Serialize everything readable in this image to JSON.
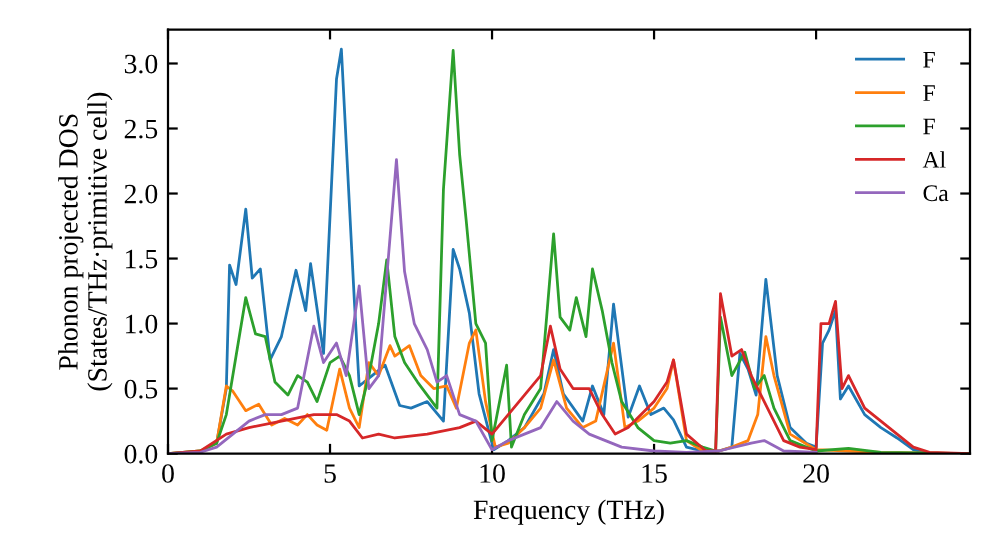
{
  "chart_data": {
    "type": "line",
    "xlabel": "Frequency (THz)",
    "ylabel": "Phonon projected DOS\n(States/THz·primitive cell)",
    "xlim": [
      0,
      24.75
    ],
    "ylim": [
      0,
      3.26
    ],
    "xticks": [
      0,
      5,
      10,
      15,
      20
    ],
    "yticks": [
      {
        "value": 0,
        "label": "0.0"
      },
      {
        "value": 0.5,
        "label": "0.5"
      },
      {
        "value": 1,
        "label": "1.0"
      },
      {
        "value": 1.5,
        "label": "1.5"
      },
      {
        "value": 2,
        "label": "2.0"
      },
      {
        "value": 2.5,
        "label": "2.5"
      },
      {
        "value": 3,
        "label": "3.0"
      }
    ],
    "grid": false,
    "legend": "top right",
    "marker": "none",
    "line_style": "solid",
    "series": [
      {
        "name": "F",
        "color": "#1f77b4",
        "x": [
          1.5,
          1.8,
          1.9,
          2.1,
          2.4,
          2.6,
          2.85,
          3.15,
          3.5,
          3.95,
          4.25,
          4.4,
          4.8,
          5.2,
          5.35,
          5.75,
          5.9,
          6.3,
          6.7,
          7.15,
          7.5,
          8.0,
          8.5,
          8.8,
          9.0,
          9.3,
          9.6,
          10.05,
          10.5,
          11.0,
          11.6,
          11.9,
          12.2,
          12.8,
          13.1,
          13.45,
          13.75,
          14.2,
          14.55,
          14.9,
          15.3,
          15.6,
          16.0,
          16.5,
          17.0,
          17.4,
          17.65,
          17.9,
          18.15,
          18.45,
          18.8,
          19.2,
          19.7,
          20.0,
          20.2,
          20.4,
          20.6,
          20.75,
          21.0,
          21.5,
          22.0,
          22.5,
          23.0,
          23.5,
          24.75
        ],
        "values": [
          0.08,
          0.5,
          1.45,
          1.3,
          1.88,
          1.35,
          1.42,
          0.72,
          0.9,
          1.41,
          1.1,
          1.46,
          0.77,
          2.88,
          3.11,
          1.18,
          0.52,
          0.6,
          0.68,
          0.37,
          0.35,
          0.4,
          0.25,
          1.57,
          1.42,
          1.08,
          0.46,
          0.03,
          0.1,
          0.2,
          0.46,
          0.8,
          0.46,
          0.25,
          0.52,
          0.3,
          1.15,
          0.28,
          0.52,
          0.3,
          0.35,
          0.26,
          0.05,
          0.02,
          0.02,
          0.05,
          0.77,
          0.65,
          0.45,
          1.34,
          0.6,
          0.2,
          0.08,
          0.05,
          0.85,
          0.95,
          1.1,
          0.42,
          0.52,
          0.3,
          0.2,
          0.12,
          0.03,
          0,
          0
        ]
      },
      {
        "name": "F",
        "color": "#ff7f0e",
        "x": [
          0,
          1.0,
          1.5,
          1.8,
          2.0,
          2.4,
          2.8,
          3.2,
          3.6,
          4.0,
          4.3,
          4.6,
          4.9,
          5.3,
          5.6,
          5.9,
          6.2,
          6.5,
          6.85,
          7.0,
          7.45,
          7.8,
          8.2,
          8.6,
          8.9,
          9.3,
          9.5,
          9.8,
          10.1,
          10.5,
          11.0,
          11.5,
          11.9,
          12.3,
          12.8,
          13.2,
          13.75,
          14.1,
          14.5,
          15.0,
          15.4,
          15.6,
          16.0,
          16.5,
          17.0,
          17.4,
          17.9,
          18.2,
          18.45,
          18.7,
          19.2,
          20.0,
          21.0,
          22.0,
          24.75
        ],
        "values": [
          0,
          0.02,
          0.08,
          0.52,
          0.48,
          0.33,
          0.38,
          0.22,
          0.27,
          0.22,
          0.3,
          0.22,
          0.18,
          0.65,
          0.35,
          0.2,
          0.7,
          0.6,
          0.83,
          0.75,
          0.83,
          0.6,
          0.5,
          0.52,
          0.35,
          0.85,
          0.95,
          0.4,
          0.05,
          0.08,
          0.2,
          0.35,
          0.72,
          0.35,
          0.2,
          0.25,
          0.85,
          0.2,
          0.25,
          0.35,
          0.5,
          0.72,
          0.1,
          0.02,
          0.02,
          0.05,
          0.1,
          0.3,
          0.9,
          0.6,
          0.15,
          0.03,
          0.02,
          0.01,
          0
        ]
      },
      {
        "name": "F",
        "color": "#2ca02c",
        "x": [
          0,
          1.0,
          1.5,
          1.8,
          2.1,
          2.4,
          2.7,
          3.0,
          3.3,
          3.7,
          4.0,
          4.3,
          4.6,
          5.0,
          5.3,
          5.6,
          5.9,
          6.2,
          6.5,
          6.75,
          7.0,
          7.3,
          7.7,
          8.0,
          8.3,
          8.5,
          8.8,
          9.0,
          9.2,
          9.5,
          9.8,
          10.0,
          10.45,
          10.6,
          11.0,
          11.5,
          11.9,
          12.1,
          12.4,
          12.6,
          12.9,
          13.1,
          13.4,
          13.7,
          14.0,
          14.5,
          15.0,
          15.5,
          16.0,
          16.5,
          16.9,
          17.05,
          17.4,
          17.8,
          18.1,
          18.4,
          18.7,
          19.2,
          20.0,
          21.0,
          22.0,
          24.75
        ],
        "values": [
          0,
          0.02,
          0.08,
          0.3,
          0.75,
          1.2,
          0.92,
          0.9,
          0.55,
          0.45,
          0.6,
          0.55,
          0.4,
          0.7,
          0.75,
          0.6,
          0.3,
          0.6,
          1.0,
          1.49,
          0.9,
          0.7,
          0.55,
          0.45,
          0.35,
          2.03,
          3.1,
          2.3,
          1.8,
          1.0,
          0.85,
          0.1,
          0.68,
          0.05,
          0.3,
          0.5,
          1.69,
          1.05,
          0.95,
          1.2,
          0.9,
          1.42,
          1.1,
          0.7,
          0.4,
          0.2,
          0.1,
          0.08,
          0.1,
          0.05,
          0.02,
          1.05,
          0.6,
          0.78,
          0.5,
          0.6,
          0.35,
          0.1,
          0.02,
          0.04,
          0.01,
          0
        ]
      },
      {
        "name": "Al",
        "color": "#d62728",
        "x": [
          0,
          1.0,
          1.8,
          2.5,
          3.5,
          4.5,
          5.2,
          5.6,
          6.0,
          6.5,
          7.0,
          8.0,
          9.0,
          9.5,
          10.0,
          10.5,
          11.0,
          11.5,
          11.8,
          12.1,
          12.5,
          13.0,
          13.4,
          13.8,
          14.2,
          14.6,
          15.0,
          15.4,
          15.6,
          16.0,
          16.6,
          16.9,
          17.05,
          17.4,
          17.7,
          18.0,
          18.3,
          18.6,
          19.0,
          19.5,
          20.0,
          20.15,
          20.4,
          20.6,
          20.8,
          21.0,
          21.5,
          22.0,
          22.5,
          23.0,
          23.5,
          24.75
        ],
        "values": [
          0,
          0.02,
          0.15,
          0.2,
          0.25,
          0.3,
          0.3,
          0.25,
          0.12,
          0.15,
          0.12,
          0.15,
          0.2,
          0.25,
          0.15,
          0.3,
          0.45,
          0.6,
          0.98,
          0.65,
          0.5,
          0.5,
          0.3,
          0.15,
          0.2,
          0.3,
          0.4,
          0.55,
          0.72,
          0.15,
          0.02,
          0.02,
          1.23,
          0.75,
          0.8,
          0.6,
          0.45,
          0.3,
          0.1,
          0.05,
          0.03,
          1.0,
          1.0,
          1.17,
          0.5,
          0.6,
          0.35,
          0.25,
          0.15,
          0.05,
          0.01,
          0
        ]
      },
      {
        "name": "Ca",
        "color": "#9467bd",
        "x": [
          0,
          1.0,
          1.5,
          2.0,
          2.5,
          3.0,
          3.5,
          4.0,
          4.5,
          4.8,
          5.2,
          5.5,
          5.9,
          6.2,
          6.5,
          7.05,
          7.3,
          7.6,
          8.0,
          8.3,
          8.6,
          9.0,
          9.5,
          10.0,
          10.5,
          11.0,
          11.5,
          12.0,
          12.5,
          13.0,
          13.5,
          14.0,
          15.0,
          16.0,
          17.0,
          18.0,
          18.4,
          19.0,
          20.0
        ],
        "values": [
          0,
          0.01,
          0.05,
          0.15,
          0.25,
          0.3,
          0.3,
          0.35,
          0.98,
          0.7,
          0.85,
          0.6,
          1.29,
          0.5,
          0.6,
          2.26,
          1.4,
          1.0,
          0.8,
          0.55,
          0.6,
          0.3,
          0.25,
          0.03,
          0.1,
          0.15,
          0.2,
          0.4,
          0.25,
          0.15,
          0.1,
          0.05,
          0.02,
          0.01,
          0.02,
          0.08,
          0.1,
          0.02,
          0.01
        ]
      }
    ]
  }
}
